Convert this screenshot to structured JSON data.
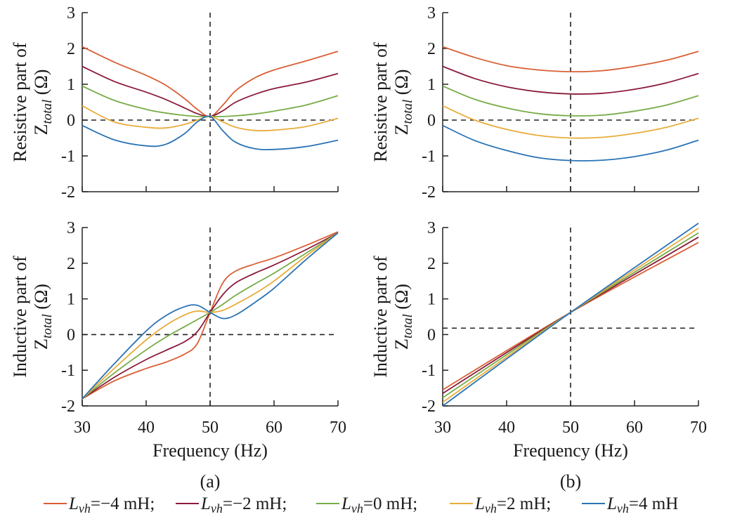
{
  "figure": {
    "captions": [
      "(a)",
      "(b)"
    ],
    "legend": [
      {
        "var": "L",
        "sub": "vh",
        "value": "=−4 mH;",
        "color": "#d95f35"
      },
      {
        "var": "L",
        "sub": "vh",
        "value": "=−2 mH;",
        "color": "#8b1a3a"
      },
      {
        "var": "L",
        "sub": "vh",
        "value": "=0 mH;",
        "color": "#77ac48"
      },
      {
        "var": "L",
        "sub": "vh",
        "value": "=2 mH;",
        "color": "#e8ac3a"
      },
      {
        "var": "L",
        "sub": "vh",
        "value": "=4 mH",
        "color": "#2a73b5"
      }
    ]
  },
  "chart_data": [
    {
      "type": "line",
      "panel": "a",
      "position": "top",
      "ylabel_line1": "Resistive part of",
      "ylabel_z": "Z",
      "ylabel_sub": "total",
      "ylabel_unit": "(Ω)",
      "xlabel": "",
      "xlim": [
        30,
        70
      ],
      "ylim": [
        -2,
        3
      ],
      "xticks": [],
      "yticks": [
        "3",
        "2",
        "1",
        "0",
        "-1",
        "-2"
      ],
      "ref_vline": 50,
      "ref_hline": 0,
      "x": [
        30,
        35,
        40,
        43,
        46,
        48,
        50,
        52,
        54,
        57,
        60,
        65,
        70
      ],
      "series": [
        {
          "name": "Lvh=−4 mH",
          "values": [
            2.05,
            1.62,
            1.25,
            0.98,
            0.6,
            0.3,
            0.1,
            0.42,
            0.82,
            1.18,
            1.4,
            1.65,
            1.92
          ]
        },
        {
          "name": "Lvh=−2 mH",
          "values": [
            1.5,
            1.08,
            0.78,
            0.58,
            0.34,
            0.18,
            0.1,
            0.26,
            0.5,
            0.72,
            0.88,
            1.06,
            1.3
          ]
        },
        {
          "name": "Lvh=0 mH",
          "values": [
            0.95,
            0.55,
            0.3,
            0.2,
            0.13,
            0.1,
            0.1,
            0.1,
            0.12,
            0.17,
            0.25,
            0.42,
            0.68
          ]
        },
        {
          "name": "Lvh=2 mH",
          "values": [
            0.4,
            -0.05,
            -0.2,
            -0.22,
            -0.12,
            0.0,
            0.1,
            -0.05,
            -0.2,
            -0.29,
            -0.28,
            -0.18,
            0.05
          ]
        },
        {
          "name": "Lvh=4 mH",
          "values": [
            -0.15,
            -0.55,
            -0.72,
            -0.68,
            -0.38,
            -0.05,
            0.1,
            -0.3,
            -0.62,
            -0.8,
            -0.82,
            -0.74,
            -0.56
          ]
        }
      ]
    },
    {
      "type": "line",
      "panel": "a",
      "position": "bottom",
      "ylabel_line1": "Inductive part of",
      "ylabel_z": "Z",
      "ylabel_sub": "total",
      "ylabel_unit": "(Ω)",
      "xlabel": "Frequency (Hz)",
      "xlim": [
        30,
        70
      ],
      "ylim": [
        -2,
        3
      ],
      "xticks": [
        "30",
        "40",
        "50",
        "60",
        "70"
      ],
      "yticks": [
        "3",
        "2",
        "1",
        "0",
        "-1",
        "-2"
      ],
      "ref_vline": 50,
      "ref_hline": 0,
      "x": [
        30,
        35,
        40,
        43,
        46,
        48,
        50,
        52,
        54,
        57,
        60,
        65,
        70
      ],
      "series": [
        {
          "name": "Lvh=−4 mH",
          "values": [
            -1.8,
            -1.3,
            -0.95,
            -0.78,
            -0.55,
            -0.25,
            0.62,
            1.45,
            1.78,
            1.98,
            2.15,
            2.5,
            2.88
          ]
        },
        {
          "name": "Lvh=−2 mH",
          "values": [
            -1.8,
            -1.2,
            -0.7,
            -0.45,
            -0.2,
            0.08,
            0.62,
            1.12,
            1.45,
            1.72,
            1.95,
            2.38,
            2.85
          ]
        },
        {
          "name": "Lvh=0 mH",
          "values": [
            -1.8,
            -1.08,
            -0.43,
            -0.08,
            0.22,
            0.42,
            0.62,
            0.85,
            1.1,
            1.42,
            1.72,
            2.28,
            2.85
          ]
        },
        {
          "name": "Lvh=2 mH",
          "values": [
            -1.8,
            -0.95,
            -0.15,
            0.25,
            0.55,
            0.66,
            0.62,
            0.68,
            0.85,
            1.15,
            1.5,
            2.2,
            2.85
          ]
        },
        {
          "name": "Lvh=4 mH",
          "values": [
            -1.8,
            -0.82,
            0.1,
            0.52,
            0.78,
            0.82,
            0.62,
            0.45,
            0.55,
            0.9,
            1.3,
            2.1,
            2.85
          ]
        }
      ]
    },
    {
      "type": "line",
      "panel": "b",
      "position": "top",
      "ylabel_line1": "Resistive part of",
      "ylabel_z": "Z",
      "ylabel_sub": "total",
      "ylabel_unit": "(Ω)",
      "xlabel": "",
      "xlim": [
        30,
        70
      ],
      "ylim": [
        -2,
        3
      ],
      "xticks": [],
      "yticks": [
        "3",
        "2",
        "1",
        "0",
        "-1",
        "-2"
      ],
      "ref_vline": 50,
      "ref_hline": 0,
      "x": [
        30,
        35,
        40,
        45,
        50,
        55,
        60,
        65,
        70
      ],
      "series": [
        {
          "name": "Lvh=−4 mH",
          "values": [
            2.05,
            1.75,
            1.52,
            1.4,
            1.35,
            1.38,
            1.5,
            1.67,
            1.92
          ]
        },
        {
          "name": "Lvh=−2 mH",
          "values": [
            1.5,
            1.16,
            0.93,
            0.79,
            0.73,
            0.75,
            0.86,
            1.04,
            1.3
          ]
        },
        {
          "name": "Lvh=0 mH",
          "values": [
            0.95,
            0.58,
            0.34,
            0.18,
            0.12,
            0.14,
            0.25,
            0.42,
            0.68
          ]
        },
        {
          "name": "Lvh=2 mH",
          "values": [
            0.4,
            0.0,
            -0.26,
            -0.43,
            -0.5,
            -0.48,
            -0.37,
            -0.2,
            0.05
          ]
        },
        {
          "name": "Lvh=4 mH",
          "values": [
            -0.15,
            -0.57,
            -0.85,
            -1.05,
            -1.13,
            -1.12,
            -1.02,
            -0.84,
            -0.56
          ]
        }
      ]
    },
    {
      "type": "line",
      "panel": "b",
      "position": "bottom",
      "ylabel_line1": "Inductive part of",
      "ylabel_z": "Z",
      "ylabel_sub": "total",
      "ylabel_unit": "(Ω)",
      "xlabel": "Frequency (Hz)",
      "xlim": [
        30,
        70
      ],
      "ylim": [
        -2,
        3
      ],
      "xticks": [
        "30",
        "40",
        "50",
        "60",
        "70"
      ],
      "yticks": [
        "3",
        "2",
        "1",
        "0",
        "-1",
        "-2"
      ],
      "ref_vline": 50,
      "ref_hline": 0.18,
      "x": [
        30,
        50,
        70
      ],
      "series": [
        {
          "name": "Lvh=−4 mH",
          "values": [
            -1.55,
            0.62,
            2.58
          ]
        },
        {
          "name": "Lvh=−2 mH",
          "values": [
            -1.65,
            0.62,
            2.73
          ]
        },
        {
          "name": "Lvh=0 mH",
          "values": [
            -1.77,
            0.62,
            2.85
          ]
        },
        {
          "name": "Lvh=2 mH",
          "values": [
            -1.9,
            0.62,
            2.98
          ]
        },
        {
          "name": "Lvh=4 mH",
          "values": [
            -2.0,
            0.62,
            3.12
          ]
        }
      ]
    }
  ]
}
